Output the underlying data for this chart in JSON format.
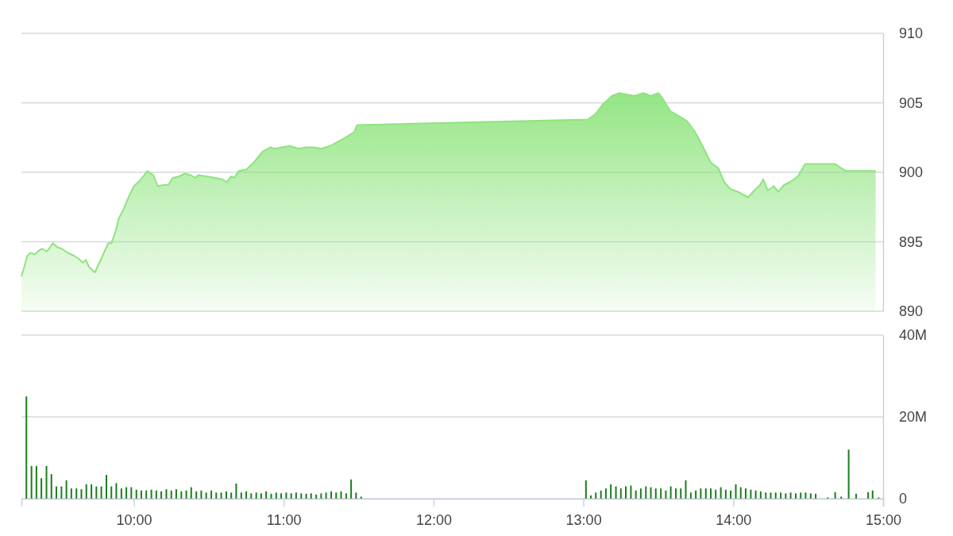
{
  "chart_data": [
    {
      "type": "area",
      "xlim": [
        9.25,
        15
      ],
      "ylim": [
        890,
        910
      ],
      "yticks": [
        890,
        895,
        900,
        905,
        910
      ],
      "grid": "y",
      "tick_labels": "y",
      "line_style": "solid",
      "series": [
        {
          "color": "#8fe47f",
          "x": [
            9.25,
            9.29,
            9.31,
            9.34,
            9.37,
            9.39,
            9.42,
            9.46,
            9.49,
            9.52,
            9.56,
            9.6,
            9.63,
            9.66,
            9.68,
            9.7,
            9.74,
            9.77,
            9.8,
            9.83,
            9.85,
            9.88,
            9.9,
            9.93,
            9.96,
            10.0,
            10.04,
            10.09,
            10.13,
            10.16,
            10.2,
            10.23,
            10.26,
            10.3,
            10.34,
            10.38,
            10.41,
            10.43,
            10.49,
            10.54,
            10.59,
            10.62,
            10.65,
            10.67,
            10.7,
            10.75,
            10.8,
            10.83,
            10.86,
            10.91,
            10.94,
            10.99,
            11.04,
            11.1,
            11.15,
            11.2,
            11.25,
            11.31,
            11.36,
            11.41,
            11.47,
            11.49,
            13.03,
            13.08,
            13.13,
            13.19,
            13.24,
            13.29,
            13.34,
            13.4,
            13.45,
            13.5,
            13.53,
            13.58,
            13.63,
            13.69,
            13.74,
            13.79,
            13.85,
            13.9,
            13.94,
            13.98,
            14.03,
            14.1,
            14.14,
            14.18,
            14.2,
            14.23,
            14.27,
            14.3,
            14.34,
            14.38,
            14.43,
            14.48,
            14.68,
            14.75,
            14.95
          ],
          "values": [
            892.5,
            894.0,
            894.2,
            894.1,
            894.4,
            894.5,
            894.3,
            894.9,
            894.6,
            894.5,
            894.2,
            894.0,
            893.8,
            893.5,
            893.7,
            893.2,
            892.8,
            893.5,
            894.2,
            894.9,
            894.9,
            895.8,
            896.7,
            897.3,
            898.1,
            899.0,
            899.4,
            900.1,
            899.8,
            899.0,
            899.1,
            899.1,
            899.6,
            899.7,
            899.9,
            899.8,
            899.6,
            899.8,
            899.7,
            899.6,
            899.5,
            899.3,
            899.7,
            899.6,
            900.1,
            900.2,
            900.7,
            901.1,
            901.5,
            901.8,
            901.7,
            901.8,
            901.9,
            901.7,
            901.8,
            901.8,
            901.7,
            901.9,
            902.2,
            902.5,
            902.9,
            903.4,
            903.8,
            904.2,
            904.9,
            905.5,
            905.7,
            905.6,
            905.5,
            905.7,
            905.5,
            905.7,
            905.3,
            904.4,
            904.1,
            903.7,
            903.0,
            902.0,
            900.7,
            900.3,
            899.3,
            898.8,
            898.6,
            898.2,
            898.7,
            899.1,
            899.5,
            898.7,
            899.0,
            898.6,
            899.1,
            899.3,
            899.7,
            900.6,
            900.6,
            900.1,
            900.1
          ]
        }
      ]
    },
    {
      "type": "bar",
      "xlim": [
        9.25,
        15
      ],
      "xticks": [
        {
          "value": 10,
          "label": "10:00"
        },
        {
          "value": 11,
          "label": "11:00"
        },
        {
          "value": 12,
          "label": "12:00"
        },
        {
          "value": 13,
          "label": "13:00"
        },
        {
          "value": 14,
          "label": "14:00"
        },
        {
          "value": 15,
          "label": "15:00"
        }
      ],
      "ylim": [
        0,
        40
      ],
      "yticks": [
        0,
        {
          "value": 20,
          "label": "20M"
        },
        {
          "value": 40,
          "label": "40M"
        }
      ],
      "grid": "y",
      "series": [
        {
          "color": "#1c7d1c",
          "x": [
            9.283,
            9.317,
            9.35,
            9.383,
            9.417,
            9.45,
            9.483,
            9.517,
            9.55,
            9.583,
            9.617,
            9.65,
            9.683,
            9.717,
            9.75,
            9.783,
            9.817,
            9.85,
            9.883,
            9.917,
            9.95,
            9.983,
            10.017,
            10.05,
            10.083,
            10.117,
            10.15,
            10.183,
            10.217,
            10.25,
            10.283,
            10.317,
            10.35,
            10.383,
            10.417,
            10.45,
            10.483,
            10.517,
            10.55,
            10.583,
            10.617,
            10.65,
            10.683,
            10.717,
            10.75,
            10.783,
            10.817,
            10.85,
            10.883,
            10.917,
            10.95,
            10.983,
            11.017,
            11.05,
            11.083,
            11.117,
            11.15,
            11.183,
            11.217,
            11.25,
            11.283,
            11.317,
            11.35,
            11.383,
            11.417,
            11.45,
            11.483,
            11.517,
            13.017,
            13.05,
            13.083,
            13.117,
            13.15,
            13.183,
            13.217,
            13.25,
            13.283,
            13.317,
            13.35,
            13.383,
            13.417,
            13.45,
            13.483,
            13.517,
            13.55,
            13.583,
            13.617,
            13.65,
            13.683,
            13.717,
            13.75,
            13.783,
            13.817,
            13.85,
            13.883,
            13.917,
            13.95,
            13.983,
            14.017,
            14.05,
            14.083,
            14.117,
            14.15,
            14.183,
            14.217,
            14.25,
            14.283,
            14.317,
            14.35,
            14.383,
            14.417,
            14.45,
            14.483,
            14.517,
            14.55,
            14.63,
            14.68,
            14.72,
            14.77,
            14.82,
            14.9,
            14.93,
            14.97
          ],
          "values": [
            25,
            8,
            8,
            5,
            8,
            6,
            3,
            3,
            4.5,
            2.5,
            2.5,
            2.3,
            3.5,
            3.5,
            3,
            3,
            5.8,
            3,
            3.8,
            2.5,
            2.8,
            2.8,
            2.2,
            2,
            2,
            2.2,
            2,
            1.8,
            2.3,
            2,
            2.3,
            1.8,
            2,
            2.8,
            1.8,
            2,
            1.5,
            2,
            1.5,
            1.5,
            1.8,
            1.5,
            3.7,
            1.5,
            1.8,
            1.3,
            1.5,
            1.3,
            1.8,
            1.2,
            1.5,
            1.3,
            1.5,
            1.3,
            1.5,
            1.3,
            1.2,
            1.3,
            1.0,
            1.3,
            1.5,
            1.8,
            1.5,
            1.8,
            1.3,
            4.7,
            1.5,
            0.5,
            4.5,
            0.8,
            1.5,
            2,
            2.5,
            3.5,
            3,
            2.5,
            3,
            3.2,
            2,
            2.5,
            3,
            2.8,
            2.5,
            2.5,
            2,
            3,
            2.5,
            2.5,
            4.5,
            1.5,
            2,
            2.5,
            2.5,
            2.5,
            2.2,
            2.8,
            2.2,
            2,
            3.5,
            2.8,
            2.5,
            2.2,
            2,
            1.8,
            1.5,
            1.5,
            1.5,
            1.5,
            1.3,
            1.5,
            1.3,
            1.5,
            1.5,
            1.3,
            1.2,
            0.3,
            1.6,
            0.5,
            12,
            1.2,
            1.6,
            2,
            0.3
          ]
        }
      ]
    }
  ]
}
